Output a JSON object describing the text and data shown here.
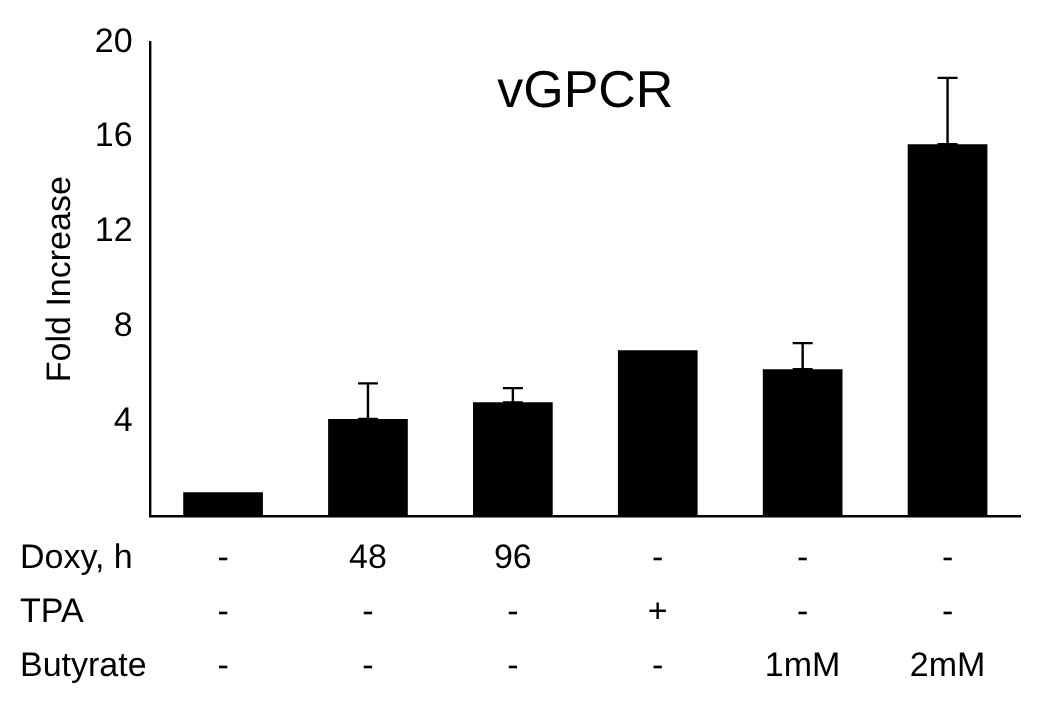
{
  "chart_data": {
    "type": "bar",
    "title": "vGPCR",
    "ylabel": "Fold Increase",
    "categories": [
      "-\n-\n-",
      "48\n-\n-",
      "96\n-\n-",
      "-\n+\n-",
      "-\n-\n1mM",
      "-\n-\n2mM"
    ],
    "values": [
      1.0,
      4.1,
      4.8,
      7.0,
      6.2,
      15.7
    ],
    "errors": [
      null,
      [
        4.1,
        5.6
      ],
      [
        4.8,
        5.4
      ],
      null,
      [
        6.2,
        7.3
      ],
      [
        15.7,
        18.5
      ]
    ],
    "color": "#000000",
    "ylim": [
      0,
      20
    ],
    "yticks": [
      4,
      8,
      12,
      16,
      20
    ],
    "annotations": [
      "Doxy, h",
      "TPA",
      "Butyrate"
    ],
    "grid": false,
    "legend": false
  }
}
